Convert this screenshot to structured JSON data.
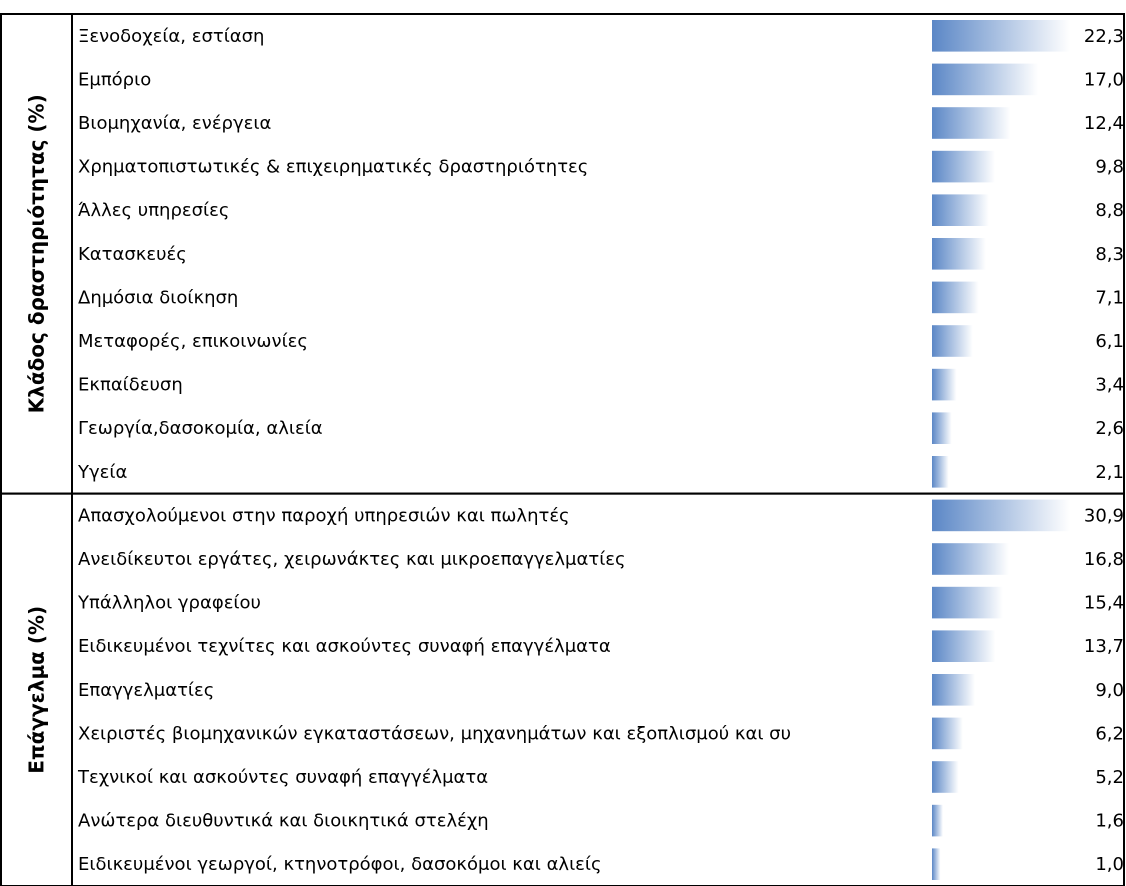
{
  "groups": [
    {
      "label": "Κλάδος δραστηριότητας (%)",
      "rows": [
        {
          "name": "Ξενοδοχεία, εστίαση",
          "value": 22.3,
          "value_label": "22,3"
        },
        {
          "name": "Εμπόριο",
          "value": 17.0,
          "value_label": "17,0"
        },
        {
          "name": "Βιομηχανία, ενέργεια",
          "value": 12.4,
          "value_label": "12,4"
        },
        {
          "name": "Χρηματοπιστωτικές & επιχειρηματικές δραστηριότητες",
          "value": 9.8,
          "value_label": "9,8"
        },
        {
          "name": "Άλλες υπηρεσίες",
          "value": 8.8,
          "value_label": "8,8"
        },
        {
          "name": "Κατασκευές",
          "value": 8.3,
          "value_label": "8,3"
        },
        {
          "name": "Δημόσια διοίκηση",
          "value": 7.1,
          "value_label": "7,1"
        },
        {
          "name": "Μεταφορές, επικοινωνίες",
          "value": 6.1,
          "value_label": "6,1"
        },
        {
          "name": "Εκπαίδευση",
          "value": 3.4,
          "value_label": "3,4"
        },
        {
          "name": "Γεωργία,δασοκομία, αλιεία",
          "value": 2.6,
          "value_label": "2,6"
        },
        {
          "name": "Υγεία",
          "value": 2.1,
          "value_label": "2,1"
        }
      ]
    },
    {
      "label": "Επάγγελμα (%)",
      "rows": [
        {
          "name": "Απασχολούμενοι στην παροχή υπηρεσιών και πωλητές",
          "value": 30.9,
          "value_label": "30,9"
        },
        {
          "name": "Ανειδίκευτοι εργάτες, χειρωνάκτες και μικροεπαγγελματίες",
          "value": 16.8,
          "value_label": "16,8"
        },
        {
          "name": "Υπάλληλοι γραφείου",
          "value": 15.4,
          "value_label": "15,4"
        },
        {
          "name": "Ειδικευμένοι τεχνίτες και ασκούντες συναφή επαγγέλματα",
          "value": 13.7,
          "value_label": "13,7"
        },
        {
          "name": "Επαγγελματίες",
          "value": 9.0,
          "value_label": "9,0"
        },
        {
          "name": "Χειριστές βιομηχανικών εγκαταστάσεων, μηχανημάτων και εξοπλισμού και συ",
          "value": 6.2,
          "value_label": "6,2"
        },
        {
          "name": "Τεχνικοί και ασκούντες συναφή επαγγέλματα",
          "value": 5.2,
          "value_label": "5,2"
        },
        {
          "name": "Ανώτερα διευθυντικά και διοικητικά στελέχη",
          "value": 1.6,
          "value_label": "1,6"
        },
        {
          "name": "Ειδικευμένοι γεωργοί, κτηνοτρόφοι, δασοκόμοι και αλιείς",
          "value": 1.0,
          "value_label": "1,0"
        }
      ]
    }
  ]
}
